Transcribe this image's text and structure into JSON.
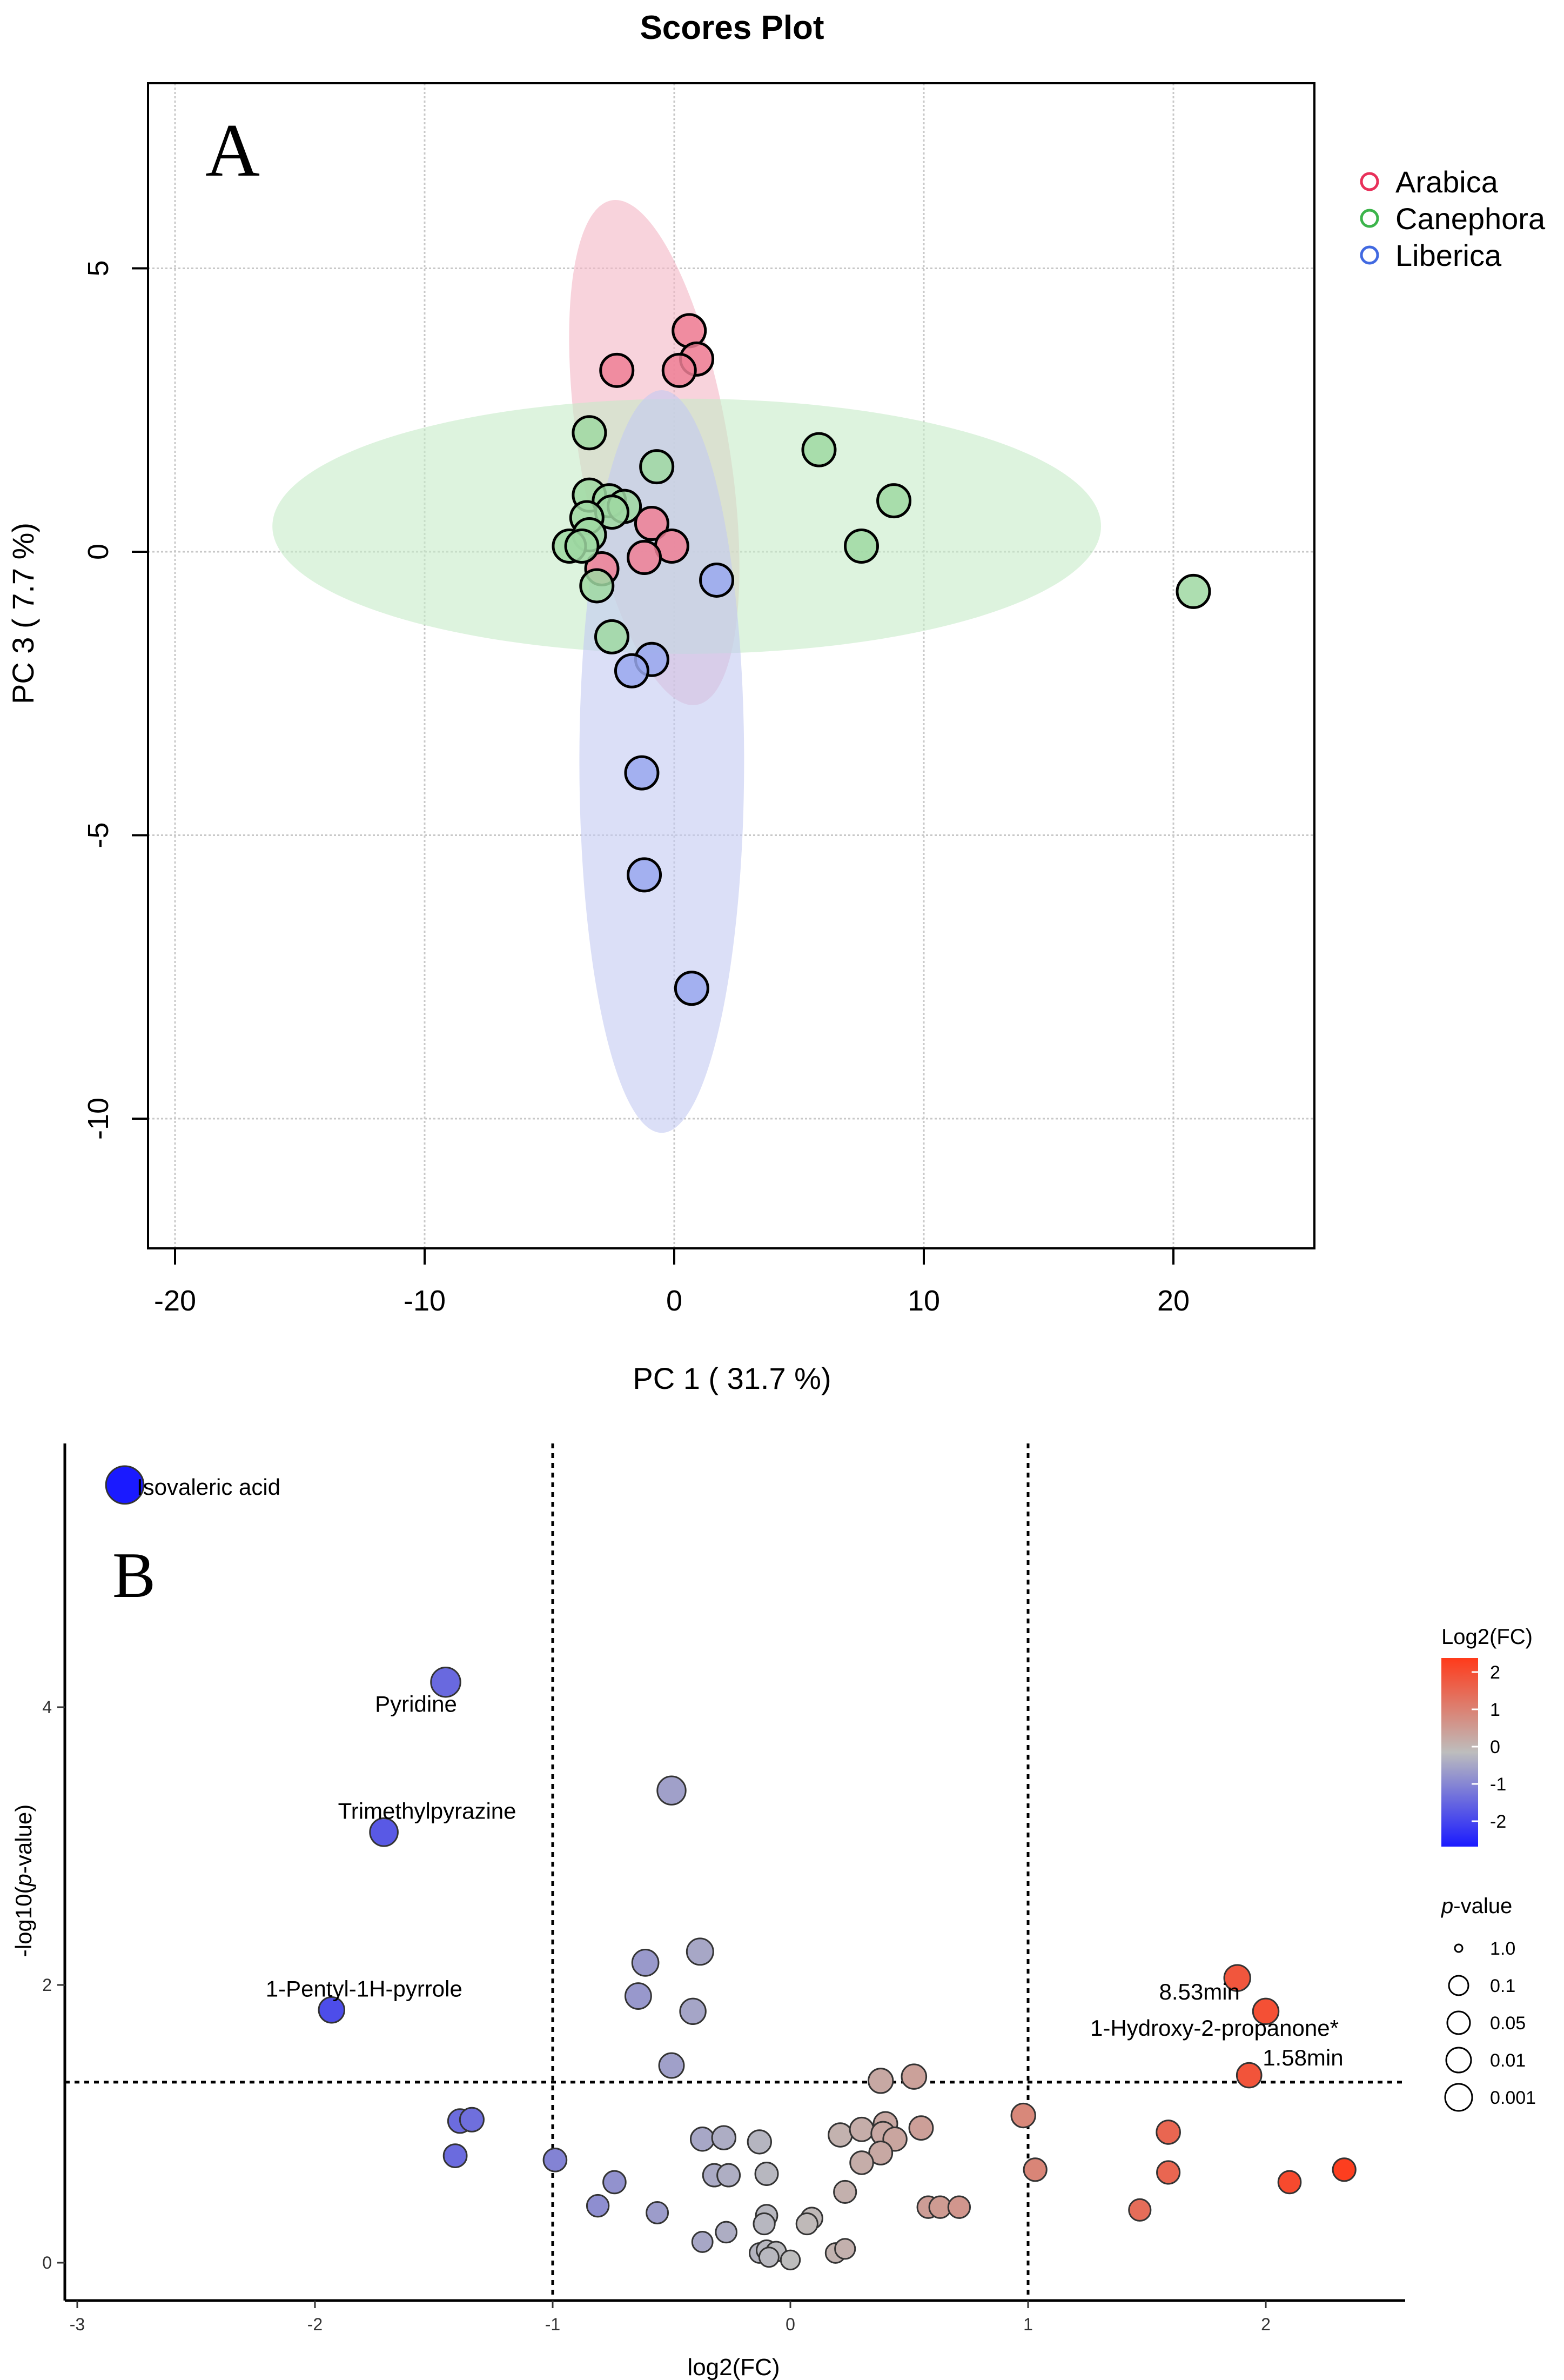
{
  "chart_data": [
    {
      "type": "scatter",
      "panel_label": "A",
      "title": "Scores Plot",
      "xlabel": "PC 1 ( 31.7 %)",
      "ylabel": "PC 3 ( 7.7 %)",
      "xlim": [
        -21,
        26
      ],
      "ylim": [
        -12.3,
        8.3
      ],
      "xticks": [
        -20,
        -10,
        0,
        10,
        20
      ],
      "yticks": [
        5,
        0,
        -5,
        -10
      ],
      "grid": true,
      "legend_position": "right-top",
      "series": [
        {
          "name": "Arabica",
          "color": "#e8305a",
          "fill": "#ef7f95",
          "ellipse": {
            "cx": 0.2,
            "cy": 1.75,
            "top": [
              0.9,
              6.2
            ],
            "bottom": [
              -2.5,
              -2.7
            ],
            "half_width": 3.0,
            "color": "#f4b6c4"
          },
          "points": [
            [
              0.6,
              3.9
            ],
            [
              0.9,
              3.4
            ],
            [
              0.2,
              3.2
            ],
            [
              -2.3,
              3.2
            ],
            [
              -0.9,
              0.5
            ],
            [
              -0.1,
              0.1
            ],
            [
              -1.2,
              -0.1
            ],
            [
              -2.9,
              -0.3
            ]
          ]
        },
        {
          "name": "Canephora",
          "color": "#3cb44b",
          "fill": "#9fd8a2",
          "ellipse": {
            "cx": 0.5,
            "cy": 0.45,
            "rx": 16.6,
            "ry": 2.25,
            "color": "#c6ebc8"
          },
          "points": [
            [
              -3.4,
              2.1
            ],
            [
              -0.7,
              1.5
            ],
            [
              -3.4,
              1.0
            ],
            [
              -2.6,
              0.9
            ],
            [
              -2.0,
              0.8
            ],
            [
              -2.5,
              0.7
            ],
            [
              -3.5,
              0.6
            ],
            [
              -3.4,
              0.3
            ],
            [
              -4.2,
              0.1
            ],
            [
              -3.7,
              0.1
            ],
            [
              -3.1,
              -0.6
            ],
            [
              -2.5,
              -1.5
            ],
            [
              5.8,
              1.8
            ],
            [
              8.8,
              0.9
            ],
            [
              7.5,
              0.1
            ],
            [
              20.8,
              -0.7
            ]
          ]
        },
        {
          "name": "Liberica",
          "color": "#4169e1",
          "fill": "#99a8ee",
          "ellipse": {
            "cx": -0.5,
            "cy": -3.7,
            "rx": 3.3,
            "ry": 6.55,
            "color": "#c3caf2"
          },
          "points": [
            [
              1.7,
              -0.5
            ],
            [
              -0.9,
              -1.9
            ],
            [
              -1.7,
              -2.1
            ],
            [
              -1.3,
              -3.9
            ],
            [
              -1.2,
              -5.7
            ],
            [
              0.7,
              -7.7
            ]
          ]
        }
      ]
    },
    {
      "type": "scatter",
      "subtype": "volcano",
      "panel_label": "B",
      "xlabel": "log2(FC)",
      "ylabel": "-log10(p-value)",
      "xlim": [
        -3.1,
        2.6
      ],
      "ylim": [
        -0.25,
        5.85
      ],
      "xticks": [
        -3,
        -2,
        -1,
        0,
        1,
        2
      ],
      "yticks": [
        0,
        2,
        4
      ],
      "thresholds": {
        "fc": [
          -1,
          1
        ],
        "neglog10p": 1.3
      },
      "color_legend": {
        "title": "Log2(FC)",
        "ticks": [
          "2",
          "1",
          "0",
          "-1",
          "-2"
        ],
        "low": "#1a1aff",
        "mid": "#bdbdbd",
        "high": "#ff3a1a"
      },
      "size_legend": {
        "title_italic": "p",
        "title_rest": "-value",
        "values": [
          "1.0",
          "0.1",
          "0.05",
          "0.01",
          "0.001"
        ]
      },
      "labeled_points": [
        {
          "label": "Isovaleric acid",
          "fc": -2.8,
          "y": 5.6
        },
        {
          "label": "Pyridine",
          "fc": -1.45,
          "y": 4.18
        },
        {
          "label": "Trimethylpyrazine",
          "fc": -1.71,
          "y": 3.1
        },
        {
          "label": "1-Pentyl-1H-pyrrole",
          "fc": -1.93,
          "y": 1.82
        },
        {
          "label": "8.53min",
          "fc": 1.88,
          "y": 2.05
        },
        {
          "label": "1-Hydroxy-2-propanone*",
          "fc": 2.0,
          "y": 1.81
        },
        {
          "label": "1.58min",
          "fc": 1.93,
          "y": 1.35
        }
      ],
      "points": [
        [
          -0.5,
          3.4
        ],
        [
          -0.38,
          2.24
        ],
        [
          -0.61,
          2.16
        ],
        [
          -0.64,
          1.92
        ],
        [
          -0.41,
          1.81
        ],
        [
          -0.5,
          1.42
        ],
        [
          0.38,
          1.31
        ],
        [
          0.52,
          1.34
        ],
        [
          0.98,
          1.06
        ],
        [
          1.59,
          0.94
        ],
        [
          1.03,
          0.67
        ],
        [
          1.59,
          0.65
        ],
        [
          2.1,
          0.58
        ],
        [
          2.33,
          0.67
        ],
        [
          1.47,
          0.38
        ],
        [
          -1.39,
          1.02
        ],
        [
          -1.34,
          1.03
        ],
        [
          -1.41,
          0.77
        ],
        [
          -0.99,
          0.74
        ],
        [
          -0.74,
          0.58
        ],
        [
          -0.81,
          0.41
        ],
        [
          -0.56,
          0.36
        ],
        [
          -0.37,
          0.89
        ],
        [
          -0.28,
          0.9
        ],
        [
          -0.13,
          0.87
        ],
        [
          -0.32,
          0.63
        ],
        [
          -0.26,
          0.63
        ],
        [
          -0.1,
          0.64
        ],
        [
          -0.27,
          0.22
        ],
        [
          -0.37,
          0.15
        ],
        [
          -0.1,
          0.34
        ],
        [
          -0.11,
          0.28
        ],
        [
          0.09,
          0.32
        ],
        [
          0.07,
          0.28
        ],
        [
          -0.13,
          0.07
        ],
        [
          -0.1,
          0.09
        ],
        [
          -0.06,
          0.08
        ],
        [
          -0.09,
          0.04
        ],
        [
          0.0,
          0.02
        ],
        [
          0.19,
          0.07
        ],
        [
          0.23,
          0.1
        ],
        [
          0.21,
          0.92
        ],
        [
          0.3,
          0.96
        ],
        [
          0.4,
          1.0
        ],
        [
          0.39,
          0.93
        ],
        [
          0.44,
          0.89
        ],
        [
          0.55,
          0.97
        ],
        [
          0.38,
          0.79
        ],
        [
          0.3,
          0.72
        ],
        [
          0.23,
          0.51
        ],
        [
          0.58,
          0.4
        ],
        [
          0.63,
          0.4
        ],
        [
          0.71,
          0.4
        ]
      ]
    }
  ]
}
